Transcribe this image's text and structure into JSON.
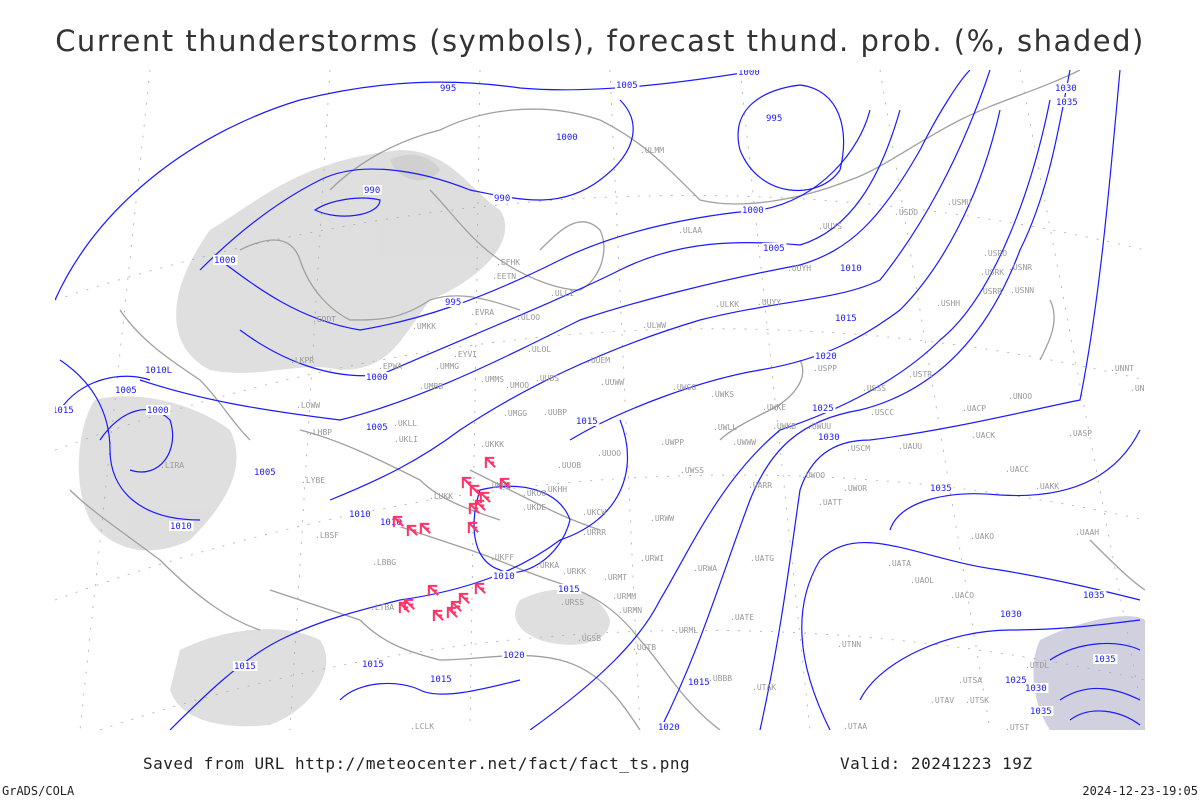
{
  "title": "Current thunderstorms (symbols), forecast thund. prob. (%, shaded)",
  "footer": {
    "saved_from": "Saved from URL http://meteocenter.net/fact/fact_ts.png",
    "valid": "Valid: 20241223 19Z",
    "software": "GrADS/COLA",
    "timestamp": "2024-12-23-19:05"
  },
  "colors": {
    "isobar": "#1a1aff",
    "coastline": "#a0a0a0",
    "thunderstorm_symbol": "#ff3366",
    "probability_shading": "#d8d8d8"
  },
  "legend": {
    "symbol_meaning": "thunderstorm-symbol",
    "shading_meaning": "forecast thunderstorm probability (%)"
  },
  "isobar_labels": [
    "995",
    "1005",
    "1000",
    "995",
    "1000",
    "990",
    "990",
    "1000",
    "1005",
    "1010",
    "995",
    "1015",
    "1000",
    "1000",
    "1005",
    "1010L",
    "1005",
    "1000",
    "1015",
    "1020",
    "1025",
    "1030",
    "1035",
    "1005",
    "1010",
    "1010",
    "1010",
    "1015",
    "1010",
    "1015",
    "1015",
    "1015",
    "1015",
    "1020",
    "1015",
    "1020",
    "1030",
    "1035",
    "1030",
    "1035",
    "1025",
    "1030",
    "1035",
    "1035"
  ],
  "stations": [
    "ULMM",
    "ULLI",
    "ULAA",
    "UUYS",
    "USDD",
    "USMU",
    "UUYH",
    "ULKK",
    "UUYY",
    "ULWW",
    "USRO",
    "USRK",
    "USNR",
    "USRR",
    "USNN",
    "USHH",
    "USPP",
    "UUEM",
    "UUWW",
    "UWGG",
    "UWKS",
    "USSS",
    "USTR",
    "UNOO",
    "UWKE",
    "USCC",
    "UACP",
    "UWLL",
    "UWKB",
    "UWUU",
    "UACK",
    "UASP",
    "UWPP",
    "UWWW",
    "USCM",
    "UAUU",
    "UUOO",
    "UWSS",
    "UACC",
    "UAKK",
    "UWOO",
    "UWOR",
    "UATT",
    "UARR",
    "URWW",
    "UKCW",
    "URRR",
    "URWI",
    "URWA",
    "UATG",
    "UAAH",
    "UAKO",
    "UATA",
    "UAOL",
    "UACO",
    "URMT",
    "URMM",
    "URMN",
    "UATE",
    "URML",
    "UGTB",
    "UBBB",
    "UTAK",
    "UTNN",
    "UTSA",
    "UTAV",
    "UTSK",
    "UTST",
    "UTAA",
    "UTDL",
    "UNNT",
    "UNBB",
    "EFHK",
    "EETN",
    "EVRA",
    "ULOO",
    "UMKK",
    "EDDT",
    "EYVI",
    "ULOL",
    "EPWA",
    "UMMG",
    "UMMS",
    "UMOO",
    "UUBS",
    "UMBB",
    "LKPR",
    "LOWW",
    "UKLL",
    "UMGG",
    "UUBP",
    "LHBP",
    "UKLI",
    "UKKK",
    "UUOB",
    "UKHH",
    "UKBB",
    "UKOO",
    "LUKK",
    "LYBE",
    "UKDE",
    "LBSF",
    "UKFF",
    "URKA",
    "URKK",
    "LBBG",
    "URSS",
    "UGSB",
    "LTBA",
    "LIRA",
    "LCLK"
  ],
  "thunderstorm_count": 19
}
